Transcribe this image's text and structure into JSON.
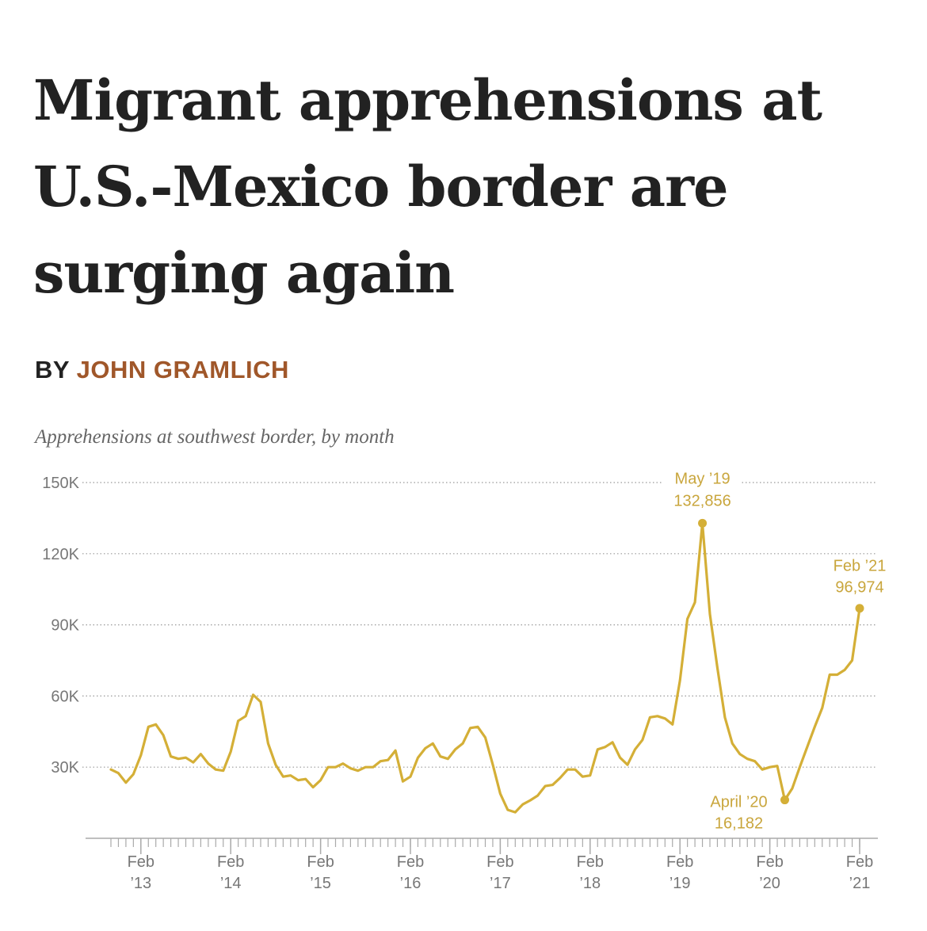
{
  "headline": "Migrant apprehensions at U.S.-Mexico border are surging again",
  "byline": {
    "prefix": "BY",
    "author": "JOHN GRAMLICH"
  },
  "colors": {
    "line": "#d4af37",
    "author": "#a0572a",
    "text": "#222222"
  },
  "chart_data": {
    "type": "line",
    "title": "Apprehensions at southwest border, by month",
    "ylim": [
      0,
      150000
    ],
    "y_ticks": [
      {
        "value": 30000,
        "label": "30K"
      },
      {
        "value": 60000,
        "label": "60K"
      },
      {
        "value": 90000,
        "label": "90K"
      },
      {
        "value": 120000,
        "label": "120K"
      },
      {
        "value": 150000,
        "label": "150K"
      }
    ],
    "x_ticks": [
      {
        "month": "2013-02",
        "line1": "Feb",
        "line2": "’13"
      },
      {
        "month": "2014-02",
        "line1": "Feb",
        "line2": "’14"
      },
      {
        "month": "2015-02",
        "line1": "Feb",
        "line2": "’15"
      },
      {
        "month": "2016-02",
        "line1": "Feb",
        "line2": "’16"
      },
      {
        "month": "2017-02",
        "line1": "Feb",
        "line2": "’17"
      },
      {
        "month": "2018-02",
        "line1": "Feb",
        "line2": "’18"
      },
      {
        "month": "2019-02",
        "line1": "Feb",
        "line2": "’19"
      },
      {
        "month": "2020-02",
        "line1": "Feb",
        "line2": "’20"
      },
      {
        "month": "2021-02",
        "line1": "Feb",
        "line2": "’21"
      }
    ],
    "grid": "horizontal dotted",
    "series": [
      {
        "x": [
          "2012-10",
          "2012-11",
          "2012-12",
          "2013-01",
          "2013-02",
          "2013-03",
          "2013-04",
          "2013-05",
          "2013-06",
          "2013-07",
          "2013-08",
          "2013-09",
          "2013-10",
          "2013-11",
          "2013-12",
          "2014-01",
          "2014-02",
          "2014-03",
          "2014-04",
          "2014-05",
          "2014-06",
          "2014-07",
          "2014-08",
          "2014-09",
          "2014-10",
          "2014-11",
          "2014-12",
          "2015-01",
          "2015-02",
          "2015-03",
          "2015-04",
          "2015-05",
          "2015-06",
          "2015-07",
          "2015-08",
          "2015-09",
          "2015-10",
          "2015-11",
          "2015-12",
          "2016-01",
          "2016-02",
          "2016-03",
          "2016-04",
          "2016-05",
          "2016-06",
          "2016-07",
          "2016-08",
          "2016-09",
          "2016-10",
          "2016-11",
          "2016-12",
          "2017-01",
          "2017-02",
          "2017-03",
          "2017-04",
          "2017-05",
          "2017-06",
          "2017-07",
          "2017-08",
          "2017-09",
          "2017-10",
          "2017-11",
          "2017-12",
          "2018-01",
          "2018-02",
          "2018-03",
          "2018-04",
          "2018-05",
          "2018-06",
          "2018-07",
          "2018-08",
          "2018-09",
          "2018-10",
          "2018-11",
          "2018-12",
          "2019-01",
          "2019-02",
          "2019-03",
          "2019-04",
          "2019-05",
          "2019-06",
          "2019-07",
          "2019-08",
          "2019-09",
          "2019-10",
          "2019-11",
          "2019-12",
          "2020-01",
          "2020-02",
          "2020-03",
          "2020-04",
          "2020-05",
          "2020-06",
          "2020-07",
          "2020-08",
          "2020-09",
          "2020-10",
          "2020-11",
          "2020-12",
          "2021-01",
          "2021-02"
        ],
        "values": [
          29000,
          27500,
          23500,
          27000,
          35000,
          47000,
          48000,
          43500,
          34500,
          33500,
          34000,
          32000,
          35500,
          31500,
          29000,
          28500,
          36500,
          49500,
          51500,
          60500,
          57500,
          40000,
          31000,
          26000,
          26500,
          24500,
          25000,
          21500,
          24500,
          30000,
          30000,
          31500,
          29500,
          28500,
          30000,
          30000,
          32500,
          33000,
          37000,
          24000,
          26000,
          34000,
          38000,
          40000,
          34500,
          33500,
          37500,
          40000,
          46500,
          47000,
          42500,
          31000,
          18800,
          12000,
          11000,
          14300,
          16000,
          18000,
          22000,
          22500,
          25500,
          29000,
          29000,
          26000,
          26500,
          37500,
          38500,
          40500,
          34000,
          31000,
          37500,
          41500,
          51000,
          51500,
          50500,
          48000,
          66500,
          92500,
          99500,
          132856,
          94500,
          72000,
          51000,
          40000,
          35500,
          33500,
          32500,
          29000,
          30000,
          30500,
          16182,
          21000,
          30000,
          38500,
          47000,
          55000,
          69000,
          69000,
          71000,
          75000,
          96974
        ]
      }
    ],
    "annotations": [
      {
        "month": "2019-05",
        "value": 132856,
        "label": "May ’19",
        "value_label": "132,856"
      },
      {
        "month": "2020-04",
        "value": 16182,
        "label": "April ’20",
        "value_label": "16,182"
      },
      {
        "month": "2021-02",
        "value": 96974,
        "label": "Feb ’21",
        "value_label": "96,974"
      }
    ]
  }
}
